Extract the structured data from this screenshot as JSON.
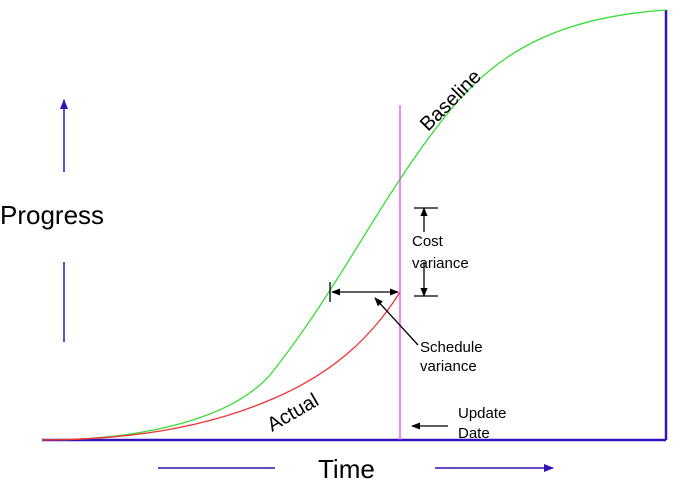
{
  "diagram": {
    "y_axis_label": "Progress",
    "x_axis_label": "Time",
    "curves": [
      {
        "name": "Baseline",
        "color": "#33dd33"
      },
      {
        "name": "Actual",
        "color": "#ee3333"
      }
    ],
    "annotations": {
      "cost_variance": [
        "Cost",
        "variance"
      ],
      "schedule_variance": [
        "Schedule",
        "variance"
      ],
      "update_date": [
        "Update",
        "Date"
      ]
    },
    "colors": {
      "axis": "#3311bb",
      "update_line": "#ee44ee",
      "arrows": "#000000"
    }
  }
}
